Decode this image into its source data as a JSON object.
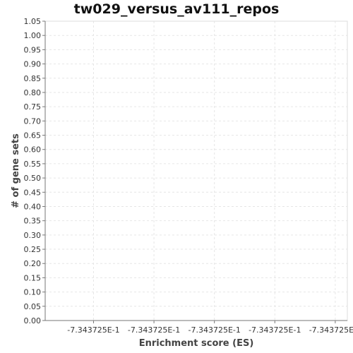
{
  "chart_data": {
    "type": "bar",
    "title": "tw029_versus_av111_repos",
    "xlabel": "Enrichment score (ES)",
    "ylabel": "# of gene sets",
    "ylim": [
      0,
      1.05
    ],
    "y_ticks": [
      "0.00",
      "0.05",
      "0.10",
      "0.15",
      "0.20",
      "0.25",
      "0.30",
      "0.35",
      "0.40",
      "0.45",
      "0.50",
      "0.55",
      "0.60",
      "0.65",
      "0.70",
      "0.75",
      "0.80",
      "0.85",
      "0.90",
      "0.95",
      "1.00",
      "1.05"
    ],
    "x_ticks": [
      "-7.343725E-1",
      "-7.343725E-1",
      "-7.343725E-1",
      "-7.343725E-1",
      "-7.343725E-1"
    ],
    "categories": [],
    "values": [],
    "grid": true
  }
}
